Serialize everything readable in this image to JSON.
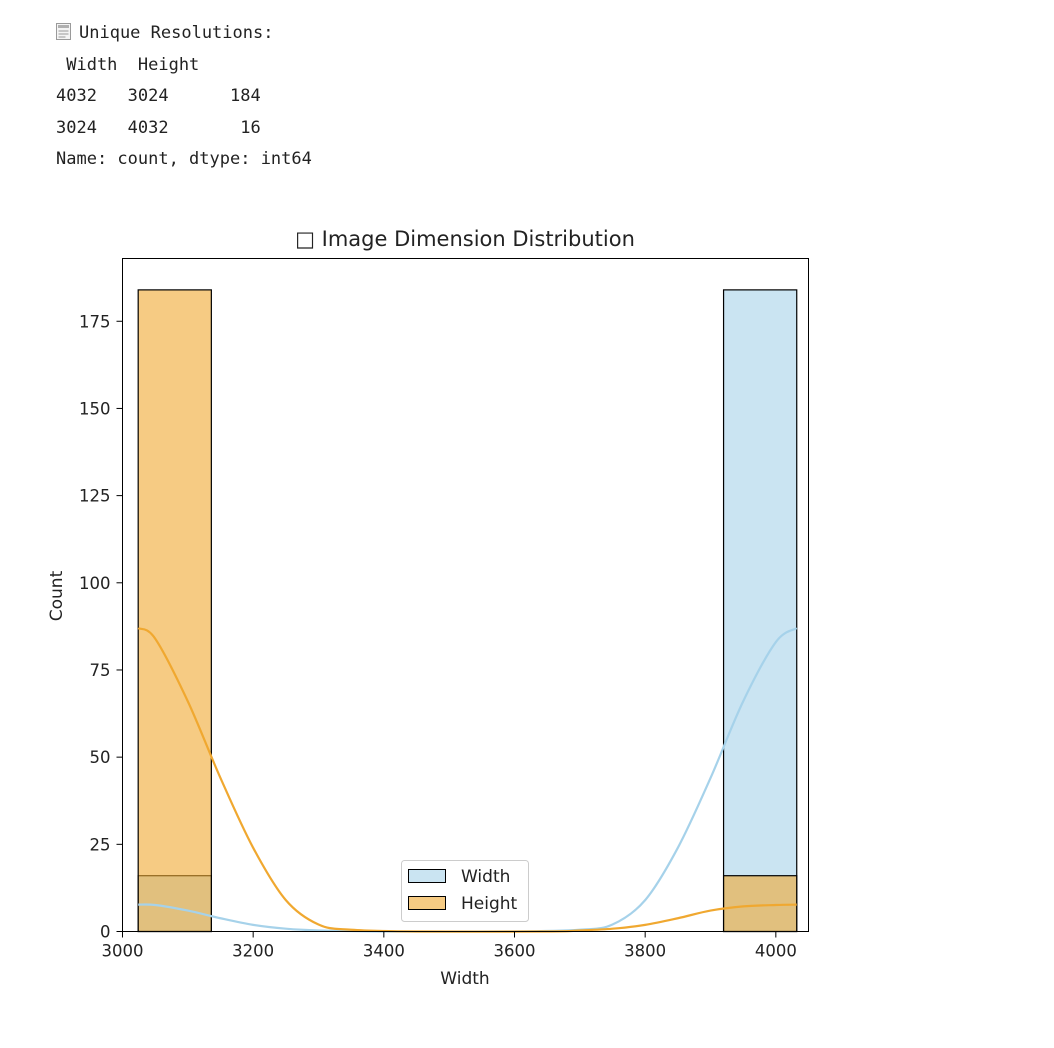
{
  "output": {
    "heading": "Unique Resolutions:",
    "header_row": " Width  Height",
    "rows": [
      "4032   3024      184",
      "3024   4032       16"
    ],
    "footer": "Name: count, dtype: int64",
    "icon": "memo-icon"
  },
  "chart_data": {
    "type": "histogram",
    "title": "□ Image Dimension Distribution",
    "xlabel": "Width",
    "ylabel": "Count",
    "xlim": [
      3000,
      4050
    ],
    "ylim": [
      0,
      193
    ],
    "x_ticks": [
      "3000",
      "3200",
      "3400",
      "3600",
      "3800",
      "4000"
    ],
    "y_ticks": [
      "0",
      "25",
      "50",
      "75",
      "100",
      "125",
      "150",
      "175"
    ],
    "grid": false,
    "legend_position": "lower center",
    "bin_edges": [
      3024,
      3136,
      3920,
      4032
    ],
    "series": [
      {
        "name": "Width",
        "color": "#a6d2ea",
        "bins": [
          {
            "start": 3024,
            "end": 3136,
            "count": 16
          },
          {
            "start": 3920,
            "end": 4032,
            "count": 184
          }
        ],
        "kde": [
          [
            3024,
            7.7
          ],
          [
            3050,
            7.6
          ],
          [
            3100,
            6.0
          ],
          [
            3150,
            3.8
          ],
          [
            3200,
            1.9
          ],
          [
            3250,
            0.8
          ],
          [
            3300,
            0.3
          ],
          [
            3400,
            0
          ],
          [
            3600,
            0
          ],
          [
            3700,
            0.5
          ],
          [
            3750,
            2
          ],
          [
            3800,
            9
          ],
          [
            3850,
            24
          ],
          [
            3900,
            44
          ],
          [
            3950,
            66
          ],
          [
            4000,
            83
          ],
          [
            4032,
            87
          ]
        ]
      },
      {
        "name": "Height",
        "color": "#f0a830",
        "bins": [
          {
            "start": 3024,
            "end": 3136,
            "count": 184
          },
          {
            "start": 3920,
            "end": 4032,
            "count": 16
          }
        ],
        "kde": [
          [
            3024,
            87
          ],
          [
            3050,
            84
          ],
          [
            3100,
            66
          ],
          [
            3150,
            44
          ],
          [
            3200,
            24
          ],
          [
            3250,
            9
          ],
          [
            3300,
            2
          ],
          [
            3350,
            0.5
          ],
          [
            3450,
            0
          ],
          [
            3650,
            0
          ],
          [
            3700,
            0.3
          ],
          [
            3750,
            0.8
          ],
          [
            3800,
            1.9
          ],
          [
            3850,
            3.8
          ],
          [
            3900,
            6.0
          ],
          [
            3950,
            7.2
          ],
          [
            4000,
            7.6
          ],
          [
            4032,
            7.7
          ]
        ]
      }
    ]
  }
}
